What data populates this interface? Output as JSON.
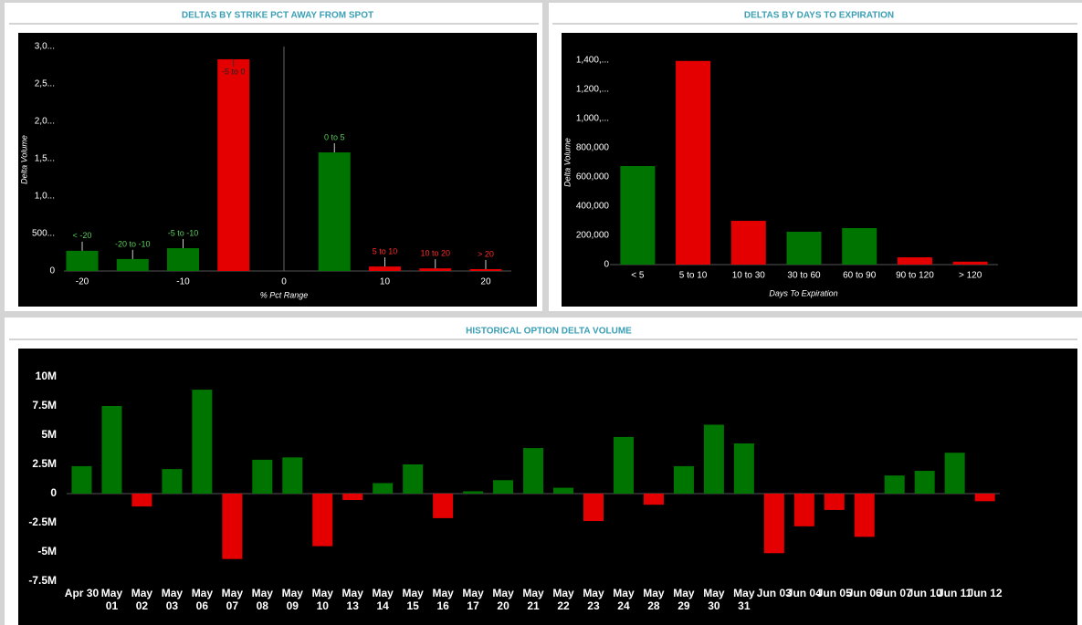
{
  "chart_data": [
    {
      "type": "bar",
      "title": "DELTAS BY STRIKE PCT AWAY FROM SPOT",
      "x_label": "% Pct Range",
      "y_label": "Delta Volume",
      "x": [
        -20,
        -15,
        -10,
        -5,
        5,
        10,
        15,
        20
      ],
      "bar_labels": [
        "< -20",
        "-20 to -10",
        "-5 to -10",
        "-5 to 0",
        "0 to 5",
        "5 to 10",
        "10 to 20",
        "> 20"
      ],
      "values": [
        270,
        160,
        305,
        2830,
        1585,
        60,
        35,
        25
      ],
      "colors": [
        "#007400",
        "#007400",
        "#007400",
        "#e40000",
        "#007400",
        "#e40000",
        "#e40000",
        "#e40000"
      ],
      "label_colors": [
        "#5ccd5c",
        "#5ccd5c",
        "#5ccd5c",
        "#e40000",
        "#5ccd5c",
        "#ff2a2a",
        "#ff2a2a",
        "#ff2a2a"
      ],
      "xlim": [
        -22.5,
        22.5
      ],
      "xticks": [
        -20,
        -10,
        0,
        10,
        20
      ],
      "zero_line": true,
      "ylim": [
        0,
        3000
      ],
      "yticks": [
        0,
        {
          "value": 500,
          "label": "500..."
        },
        {
          "value": 1000,
          "label": "1,0..."
        },
        {
          "value": 1500,
          "label": "1,5..."
        },
        {
          "value": 2000,
          "label": "2,0..."
        },
        {
          "value": 2500,
          "label": "2,5..."
        },
        {
          "value": 3000,
          "label": "3,0..."
        }
      ]
    },
    {
      "type": "bar",
      "title": "DELTAS BY DAYS TO EXPIRATION",
      "x_label": "Days To Expiration",
      "y_label": "Delta Volume",
      "categories": [
        "< 5",
        "5 to 10",
        "10 to 30",
        "30 to 60",
        "60 to 90",
        "90 to 120",
        "> 120"
      ],
      "values": [
        675000,
        1395000,
        300000,
        225000,
        250000,
        50000,
        20000
      ],
      "colors": [
        "#007400",
        "#e40000",
        "#e40000",
        "#007400",
        "#007400",
        "#e40000",
        "#e40000"
      ],
      "ylim": [
        0,
        1400000
      ],
      "yticks": [
        0,
        {
          "value": 200000,
          "label": "200,000"
        },
        {
          "value": 400000,
          "label": "400,000"
        },
        {
          "value": 600000,
          "label": "600,000"
        },
        {
          "value": 800000,
          "label": "800,000"
        },
        {
          "value": 1000000,
          "label": "1,000,..."
        },
        {
          "value": 1200000,
          "label": "1,200,..."
        },
        {
          "value": 1400000,
          "label": "1,400,..."
        }
      ]
    },
    {
      "type": "bar",
      "title": "HISTORICAL OPTION DELTA VOLUME",
      "categories": [
        "Apr 30",
        "May 01",
        "May 02",
        "May 03",
        "May 06",
        "May 07",
        "May 08",
        "May 09",
        "May 10",
        "May 13",
        "May 14",
        "May 15",
        "May 16",
        "May 17",
        "May 20",
        "May 21",
        "May 22",
        "May 23",
        "May 24",
        "May 28",
        "May 29",
        "May 30",
        "May 31",
        "Jun 03",
        "Jun 04",
        "Jun 05",
        "Jun 06",
        "Jun 07",
        "Jun 10",
        "Jun 11",
        "Jun 12"
      ],
      "values": [
        2350000,
        7500000,
        -1100000,
        2100000,
        8900000,
        -5600000,
        2900000,
        3100000,
        -4500000,
        -550000,
        900000,
        2500000,
        -2100000,
        200000,
        1150000,
        3900000,
        500000,
        -2350000,
        4850000,
        -950000,
        2350000,
        5900000,
        4300000,
        -5100000,
        -2800000,
        -1400000,
        -3700000,
        1550000,
        1950000,
        3500000,
        -650000
      ],
      "positive_color": "#007400",
      "negative_color": "#e40000",
      "ylim": [
        -7500000,
        10000000
      ],
      "yticks": [
        {
          "value": -7500000,
          "label": "-7.5M"
        },
        {
          "value": -5000000,
          "label": "-5M"
        },
        {
          "value": -2500000,
          "label": "-2.5M"
        },
        0,
        {
          "value": 2500000,
          "label": "2.5M"
        },
        {
          "value": 5000000,
          "label": "5M"
        },
        {
          "value": 7500000,
          "label": "7.5M"
        },
        {
          "value": 10000000,
          "label": "10M"
        }
      ]
    }
  ]
}
